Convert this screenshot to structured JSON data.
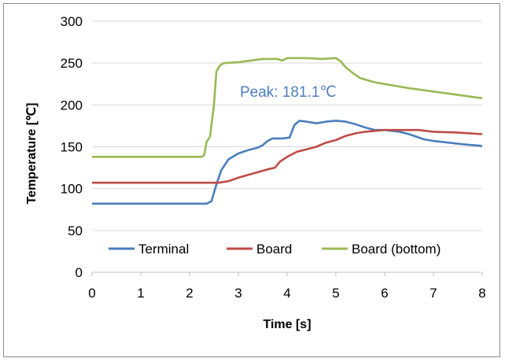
{
  "chart_data": {
    "type": "line",
    "title": "",
    "xlabel": "Time [s]",
    "ylabel": "Temperature [℃]",
    "xlim": [
      0,
      8
    ],
    "ylim": [
      0,
      300
    ],
    "x_ticks": [
      "0",
      "1",
      "2",
      "3",
      "4",
      "5",
      "6",
      "7",
      "8"
    ],
    "y_ticks": [
      "0",
      "50",
      "100",
      "150",
      "200",
      "250",
      "300"
    ],
    "grid": "horizontal",
    "legend_placement": "bottom",
    "annotation": "Peak: 181.1℃",
    "series": [
      {
        "name": "Terminal",
        "color": "#4a7ebb",
        "points": [
          [
            0,
            82
          ],
          [
            1,
            82
          ],
          [
            2,
            82
          ],
          [
            2.35,
            82
          ],
          [
            2.45,
            85
          ],
          [
            2.55,
            105
          ],
          [
            2.65,
            122
          ],
          [
            2.8,
            135
          ],
          [
            3,
            142
          ],
          [
            3.2,
            146
          ],
          [
            3.4,
            149
          ],
          [
            3.5,
            152
          ],
          [
            3.6,
            157
          ],
          [
            3.7,
            160
          ],
          [
            3.9,
            160
          ],
          [
            4.05,
            161
          ],
          [
            4.15,
            176
          ],
          [
            4.25,
            181
          ],
          [
            4.4,
            180
          ],
          [
            4.6,
            178
          ],
          [
            4.8,
            180
          ],
          [
            5,
            181.1
          ],
          [
            5.2,
            180
          ],
          [
            5.4,
            177
          ],
          [
            5.6,
            173
          ],
          [
            5.8,
            170
          ],
          [
            6,
            170
          ],
          [
            6.3,
            168
          ],
          [
            6.5,
            165
          ],
          [
            6.8,
            159
          ],
          [
            7,
            157
          ],
          [
            7.3,
            155
          ],
          [
            7.6,
            153
          ],
          [
            8,
            151
          ]
        ]
      },
      {
        "name": "Board",
        "color": "#be4b48",
        "points": [
          [
            0,
            107
          ],
          [
            1,
            107
          ],
          [
            2,
            107
          ],
          [
            2.6,
            107
          ],
          [
            2.8,
            109
          ],
          [
            3,
            113
          ],
          [
            3.3,
            118
          ],
          [
            3.6,
            123
          ],
          [
            3.75,
            125
          ],
          [
            3.85,
            132
          ],
          [
            4,
            138
          ],
          [
            4.2,
            144
          ],
          [
            4.4,
            147
          ],
          [
            4.6,
            150
          ],
          [
            4.8,
            155
          ],
          [
            5,
            158
          ],
          [
            5.2,
            163
          ],
          [
            5.4,
            166
          ],
          [
            5.6,
            168
          ],
          [
            5.8,
            169
          ],
          [
            6,
            170
          ],
          [
            6.3,
            170
          ],
          [
            6.5,
            170
          ],
          [
            6.7,
            170
          ],
          [
            7,
            168
          ],
          [
            7.5,
            167
          ],
          [
            8,
            165
          ]
        ]
      },
      {
        "name": "Board (bottom)",
        "color": "#98b954",
        "points": [
          [
            0,
            138
          ],
          [
            1,
            138
          ],
          [
            2,
            138
          ],
          [
            2.25,
            138
          ],
          [
            2.3,
            140
          ],
          [
            2.35,
            156
          ],
          [
            2.42,
            162
          ],
          [
            2.5,
            200
          ],
          [
            2.55,
            240
          ],
          [
            2.62,
            247
          ],
          [
            2.7,
            250
          ],
          [
            3,
            251
          ],
          [
            3.5,
            255
          ],
          [
            3.8,
            255
          ],
          [
            3.9,
            253
          ],
          [
            4,
            256
          ],
          [
            4.2,
            256
          ],
          [
            4.4,
            256
          ],
          [
            4.7,
            255
          ],
          [
            5,
            256
          ],
          [
            5.1,
            252
          ],
          [
            5.2,
            245
          ],
          [
            5.35,
            238
          ],
          [
            5.5,
            232
          ],
          [
            5.8,
            227
          ],
          [
            6,
            225
          ],
          [
            6.5,
            220
          ],
          [
            7,
            216
          ],
          [
            7.5,
            212
          ],
          [
            8,
            208
          ]
        ]
      }
    ]
  }
}
